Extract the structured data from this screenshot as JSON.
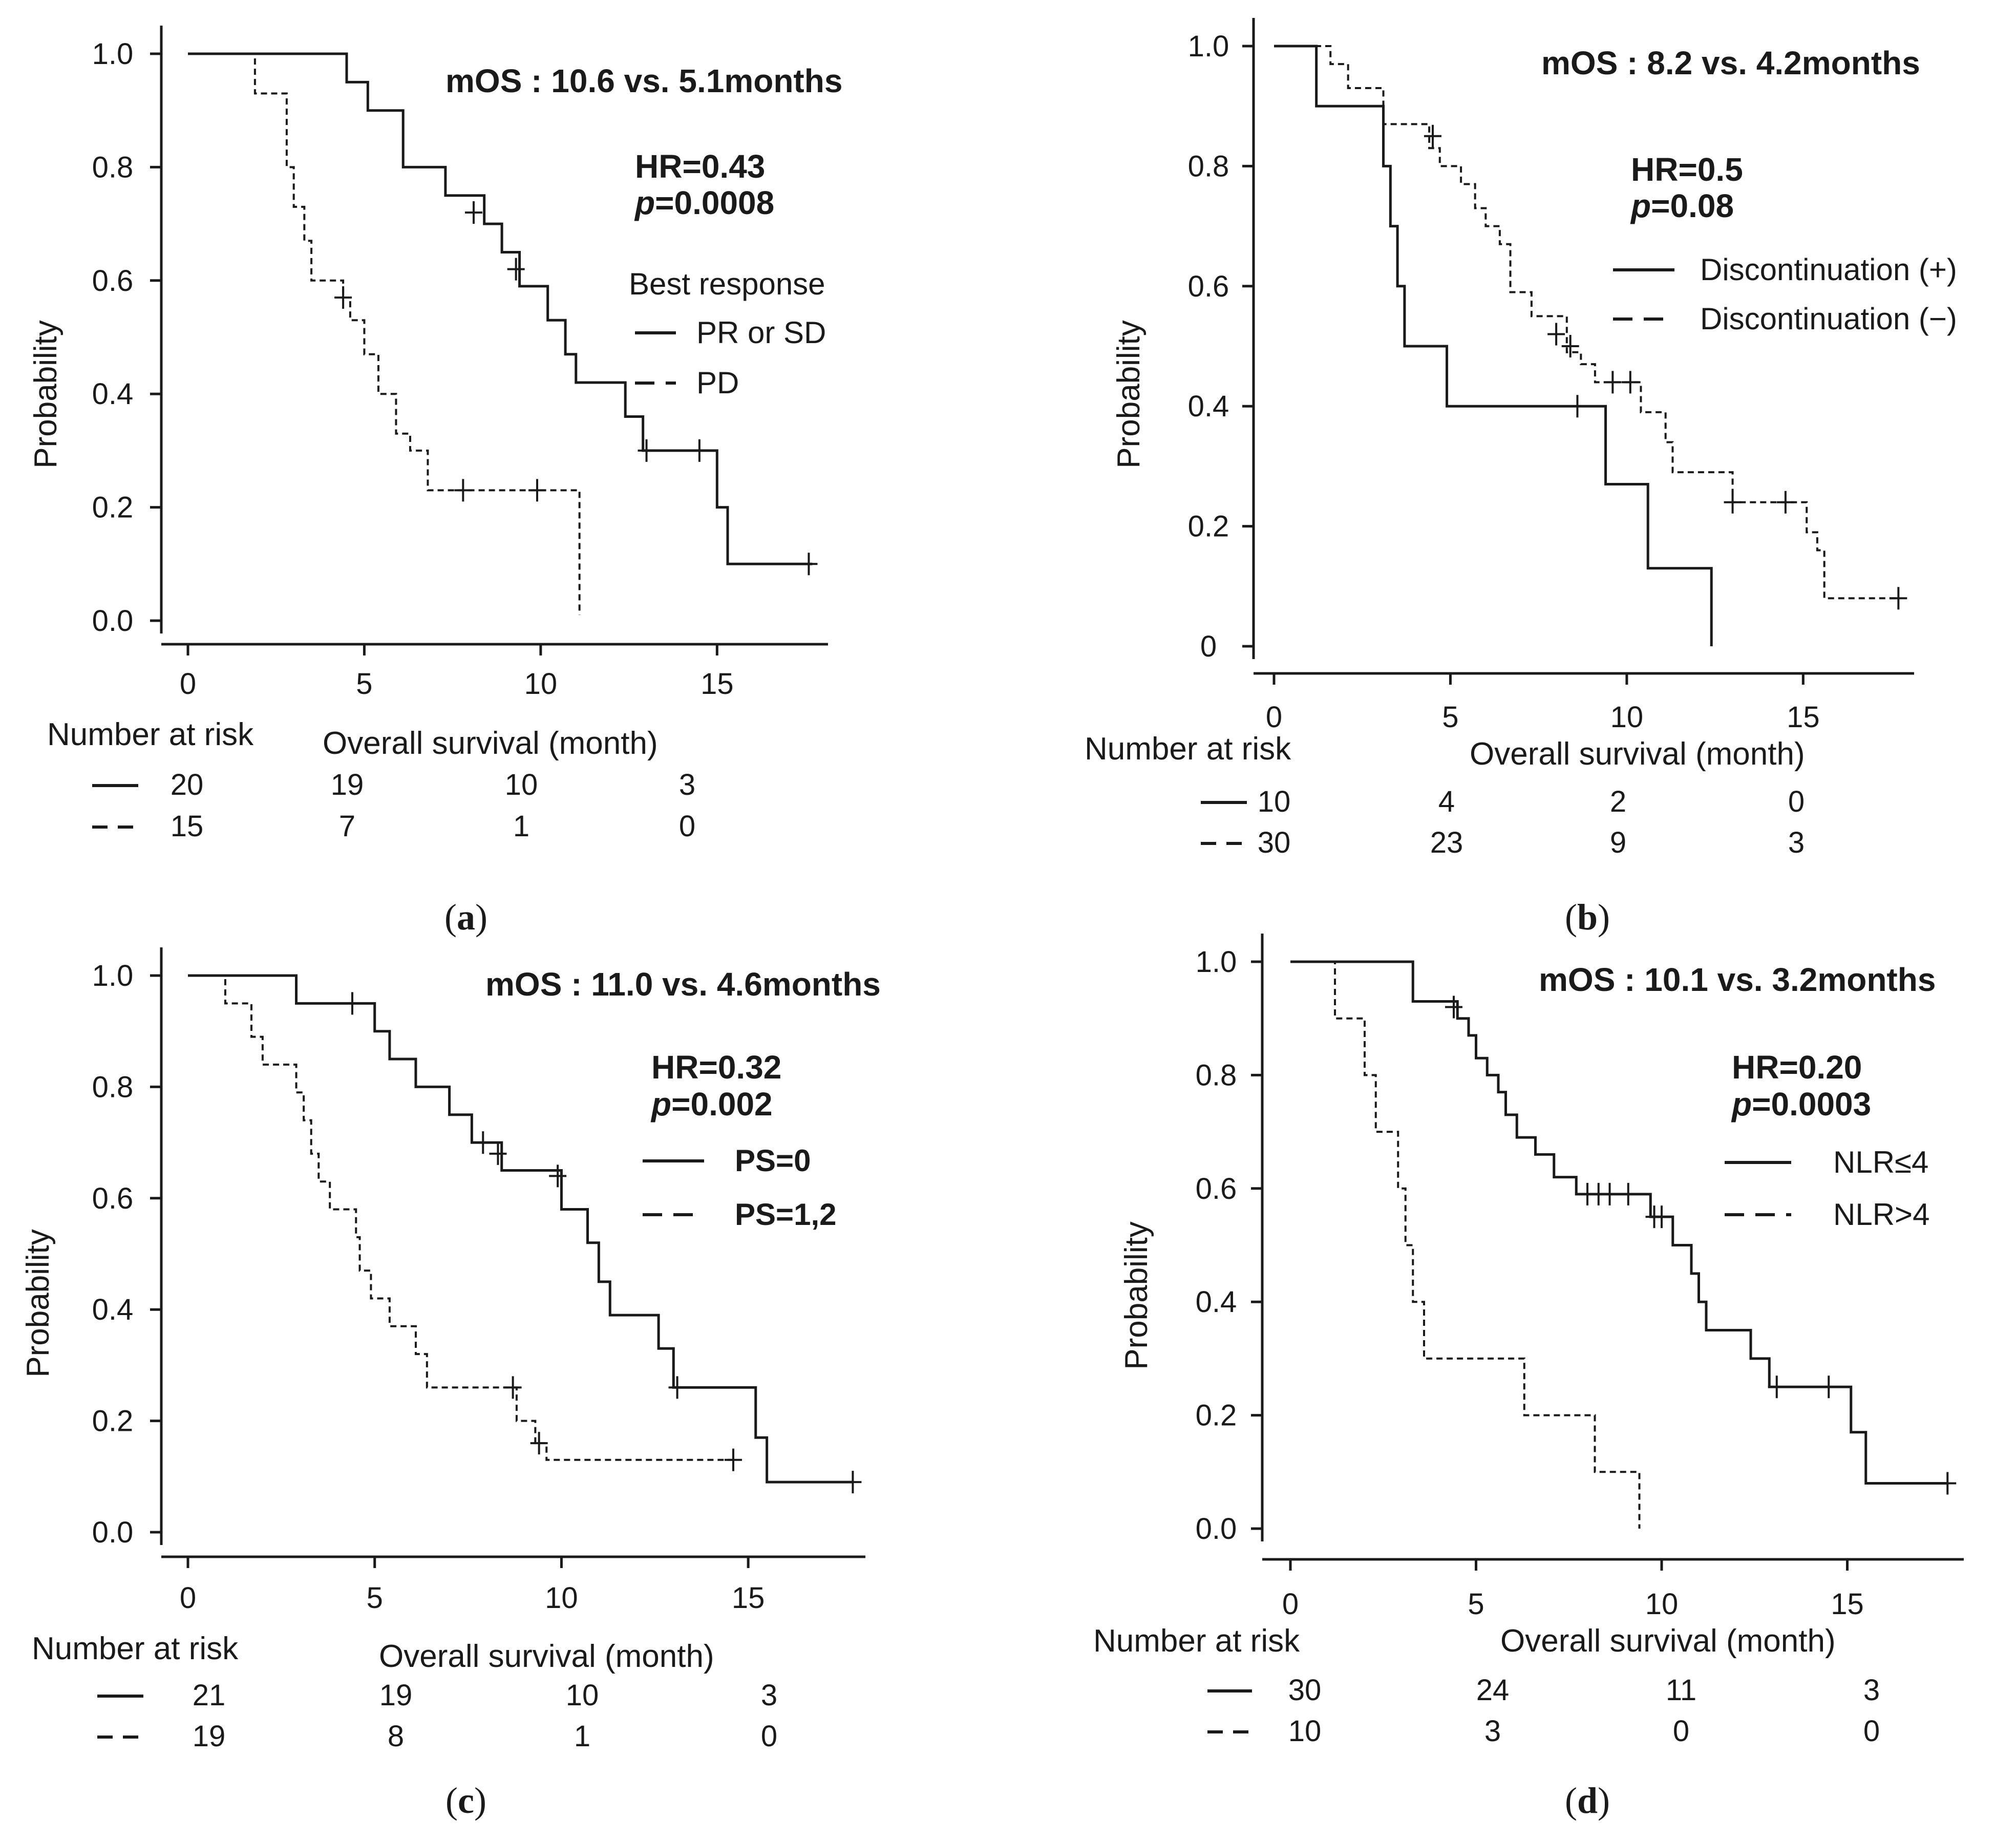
{
  "figure": {
    "xlabel": "Overall survival (month)",
    "ylabel": "Probability",
    "risk_label": "Number at risk"
  },
  "chart_data": [
    {
      "type": "line",
      "panel": "a",
      "caption": {
        "open": "(",
        "letter": "a",
        "close": ")"
      },
      "xlim": [
        0,
        18
      ],
      "ylim": [
        0,
        1
      ],
      "xticks": [
        "0",
        "5",
        "10",
        "15"
      ],
      "xtick_values": [
        0,
        5,
        10,
        15
      ],
      "yticks": [
        "0.0",
        "0.2",
        "0.4",
        "0.6",
        "0.8",
        "1.0"
      ],
      "ytick_values": [
        0,
        0.2,
        0.4,
        0.6,
        0.8,
        1.0
      ],
      "annotation": {
        "title": "mOS : 10.6 vs. 5.1months",
        "hr": "HR=0.43",
        "p_label": "p",
        "p_value": "=0.0008"
      },
      "legend": {
        "title": "Best response",
        "entries": [
          "PR or SD",
          "PD"
        ]
      },
      "series": [
        {
          "name": "PR or SD",
          "style": "solid",
          "steps": [
            [
              0,
              1.0
            ],
            [
              4.5,
              0.95
            ],
            [
              5.1,
              0.9
            ],
            [
              6.1,
              0.8
            ],
            [
              7.3,
              0.75
            ],
            [
              8.4,
              0.7
            ],
            [
              8.9,
              0.65
            ],
            [
              9.4,
              0.59
            ],
            [
              10.2,
              0.53
            ],
            [
              10.7,
              0.47
            ],
            [
              11.0,
              0.42
            ],
            [
              12.4,
              0.36
            ],
            [
              12.9,
              0.3
            ],
            [
              15.0,
              0.2
            ],
            [
              15.3,
              0.1
            ],
            [
              17.7,
              0.1
            ]
          ],
          "censors": [
            [
              8.1,
              0.72
            ],
            [
              9.3,
              0.62
            ],
            [
              13.0,
              0.3
            ],
            [
              14.5,
              0.3
            ],
            [
              17.6,
              0.1
            ]
          ]
        },
        {
          "name": "PD",
          "style": "dashed",
          "steps": [
            [
              0,
              1.0
            ],
            [
              1.9,
              0.93
            ],
            [
              2.8,
              0.8
            ],
            [
              3.0,
              0.73
            ],
            [
              3.3,
              0.67
            ],
            [
              3.5,
              0.6
            ],
            [
              4.4,
              0.57
            ],
            [
              4.6,
              0.53
            ],
            [
              5.0,
              0.47
            ],
            [
              5.4,
              0.4
            ],
            [
              5.9,
              0.33
            ],
            [
              6.3,
              0.3
            ],
            [
              6.8,
              0.23
            ],
            [
              11.1,
              0.23
            ],
            [
              11.1,
              0.01
            ]
          ],
          "censors": [
            [
              4.4,
              0.57
            ],
            [
              7.8,
              0.23
            ],
            [
              9.9,
              0.23
            ]
          ]
        }
      ],
      "risk_table": {
        "times": [
          0,
          5,
          10,
          15
        ],
        "rows": [
          [
            "20",
            "19",
            "10",
            "3"
          ],
          [
            "15",
            "7",
            "1",
            "0"
          ]
        ]
      }
    },
    {
      "type": "line",
      "panel": "b",
      "caption": {
        "open": "(",
        "letter": "b",
        "close": ")"
      },
      "xlim": [
        0,
        18
      ],
      "ylim": [
        0,
        1
      ],
      "xticks": [
        "0",
        "5",
        "10",
        "15"
      ],
      "xtick_values": [
        0,
        5,
        10,
        15
      ],
      "yticks": [
        "0",
        "0.2",
        "0.4",
        "0.6",
        "0.8",
        "1.0"
      ],
      "ytick_values": [
        0,
        0.2,
        0.4,
        0.6,
        0.8,
        1.0
      ],
      "annotation": {
        "title": "mOS : 8.2 vs. 4.2months",
        "hr": "HR=0.5",
        "p_label": "p",
        "p_value": "=0.08"
      },
      "legend": {
        "title": "",
        "entries": [
          "Discontinuation (+)",
          "Discontinuation (−)"
        ]
      },
      "series": [
        {
          "name": "Discontinuation (+)",
          "style": "solid",
          "steps": [
            [
              0,
              1.0
            ],
            [
              1.2,
              0.9
            ],
            [
              3.1,
              0.8
            ],
            [
              3.3,
              0.7
            ],
            [
              3.5,
              0.6
            ],
            [
              3.7,
              0.5
            ],
            [
              4.9,
              0.4
            ],
            [
              9.4,
              0.27
            ],
            [
              10.6,
              0.13
            ],
            [
              12.4,
              0.0
            ]
          ],
          "censors": [
            [
              8.6,
              0.4
            ]
          ]
        },
        {
          "name": "Discontinuation (−)",
          "style": "dashed",
          "steps": [
            [
              0,
              1.0
            ],
            [
              1.6,
              0.97
            ],
            [
              2.1,
              0.93
            ],
            [
              3.1,
              0.87
            ],
            [
              4.4,
              0.83
            ],
            [
              4.7,
              0.8
            ],
            [
              5.3,
              0.77
            ],
            [
              5.7,
              0.73
            ],
            [
              6.0,
              0.7
            ],
            [
              6.4,
              0.67
            ],
            [
              6.7,
              0.59
            ],
            [
              7.3,
              0.55
            ],
            [
              8.3,
              0.49
            ],
            [
              8.7,
              0.47
            ],
            [
              9.1,
              0.44
            ],
            [
              10.4,
              0.39
            ],
            [
              11.1,
              0.34
            ],
            [
              11.3,
              0.29
            ],
            [
              13.0,
              0.24
            ],
            [
              15.1,
              0.19
            ],
            [
              15.4,
              0.16
            ],
            [
              15.6,
              0.08
            ],
            [
              17.7,
              0.08
            ]
          ],
          "censors": [
            [
              4.5,
              0.85
            ],
            [
              8.0,
              0.52
            ],
            [
              8.4,
              0.5
            ],
            [
              9.6,
              0.44
            ],
            [
              10.1,
              0.44
            ],
            [
              13.0,
              0.24
            ],
            [
              14.5,
              0.24
            ],
            [
              17.7,
              0.08
            ]
          ]
        }
      ],
      "risk_table": {
        "times": [
          0,
          5,
          10,
          15
        ],
        "rows": [
          [
            "10",
            "4",
            "2",
            "0"
          ],
          [
            "30",
            "23",
            "9",
            "3"
          ]
        ]
      }
    },
    {
      "type": "line",
      "panel": "c",
      "caption": {
        "open": "(",
        "letter": "c",
        "close": ")"
      },
      "xlim": [
        0,
        18
      ],
      "ylim": [
        0,
        1
      ],
      "xticks": [
        "0",
        "5",
        "10",
        "15"
      ],
      "xtick_values": [
        0,
        5,
        10,
        15
      ],
      "yticks": [
        "0.0",
        "0.2",
        "0.4",
        "0.6",
        "0.8",
        "1.0"
      ],
      "ytick_values": [
        0,
        0.2,
        0.4,
        0.6,
        0.8,
        1.0
      ],
      "annotation": {
        "title": "mOS : 11.0 vs. 4.6months",
        "hr": "HR=0.32",
        "p_label": "p",
        "p_value": "=0.002"
      },
      "legend": {
        "title": "",
        "entries": [
          "PS=0",
          "PS=1,2"
        ]
      },
      "series": [
        {
          "name": "PS=0",
          "style": "solid",
          "steps": [
            [
              0,
              1.0
            ],
            [
              2.9,
              0.95
            ],
            [
              5.0,
              0.9
            ],
            [
              5.4,
              0.85
            ],
            [
              6.1,
              0.8
            ],
            [
              7.0,
              0.75
            ],
            [
              7.6,
              0.7
            ],
            [
              8.4,
              0.65
            ],
            [
              10.0,
              0.58
            ],
            [
              10.7,
              0.52
            ],
            [
              11.0,
              0.45
            ],
            [
              11.3,
              0.39
            ],
            [
              12.6,
              0.33
            ],
            [
              13.0,
              0.26
            ],
            [
              15.2,
              0.17
            ],
            [
              15.5,
              0.09
            ],
            [
              17.8,
              0.09
            ]
          ],
          "censors": [
            [
              4.4,
              0.95
            ],
            [
              7.9,
              0.7
            ],
            [
              8.3,
              0.68
            ],
            [
              9.9,
              0.64
            ],
            [
              13.1,
              0.26
            ],
            [
              17.8,
              0.09
            ]
          ]
        },
        {
          "name": "PS=1,2",
          "style": "dashed",
          "steps": [
            [
              0,
              1.0
            ],
            [
              1.0,
              0.95
            ],
            [
              1.7,
              0.89
            ],
            [
              2.0,
              0.84
            ],
            [
              2.9,
              0.79
            ],
            [
              3.1,
              0.74
            ],
            [
              3.3,
              0.68
            ],
            [
              3.5,
              0.63
            ],
            [
              3.8,
              0.58
            ],
            [
              4.5,
              0.53
            ],
            [
              4.6,
              0.47
            ],
            [
              4.9,
              0.42
            ],
            [
              5.4,
              0.37
            ],
            [
              6.1,
              0.32
            ],
            [
              6.4,
              0.26
            ],
            [
              8.8,
              0.2
            ],
            [
              9.3,
              0.16
            ],
            [
              9.6,
              0.13
            ],
            [
              14.7,
              0.13
            ]
          ],
          "censors": [
            [
              8.7,
              0.26
            ],
            [
              9.4,
              0.16
            ],
            [
              14.6,
              0.13
            ]
          ]
        }
      ],
      "risk_table": {
        "times": [
          0,
          5,
          10,
          15
        ],
        "rows": [
          [
            "21",
            "19",
            "10",
            "3"
          ],
          [
            "19",
            "8",
            "1",
            "0"
          ]
        ]
      }
    },
    {
      "type": "line",
      "panel": "d",
      "caption": {
        "open": "(",
        "letter": "d",
        "close": ")"
      },
      "xlim": [
        0,
        18
      ],
      "ylim": [
        0,
        1
      ],
      "xticks": [
        "0",
        "5",
        "10",
        "15"
      ],
      "xtick_values": [
        0,
        5,
        10,
        15
      ],
      "yticks": [
        "0.0",
        "0.2",
        "0.4",
        "0.6",
        "0.8",
        "1.0"
      ],
      "ytick_values": [
        0,
        0.2,
        0.4,
        0.6,
        0.8,
        1.0
      ],
      "annotation": {
        "title": "mOS : 10.1 vs. 3.2months",
        "hr": "HR=0.20",
        "p_label": "p",
        "p_value": "=0.0003"
      },
      "legend": {
        "title": "",
        "entries": [
          "NLR≤4",
          "NLR>4"
        ]
      },
      "series": [
        {
          "name": "NLR≤4",
          "style": "solid",
          "steps": [
            [
              0,
              1.0
            ],
            [
              3.3,
              0.93
            ],
            [
              4.5,
              0.9
            ],
            [
              4.8,
              0.87
            ],
            [
              5.0,
              0.83
            ],
            [
              5.3,
              0.8
            ],
            [
              5.6,
              0.77
            ],
            [
              5.8,
              0.73
            ],
            [
              6.1,
              0.69
            ],
            [
              6.6,
              0.66
            ],
            [
              7.1,
              0.62
            ],
            [
              7.7,
              0.59
            ],
            [
              9.7,
              0.55
            ],
            [
              10.3,
              0.5
            ],
            [
              10.8,
              0.45
            ],
            [
              11.0,
              0.4
            ],
            [
              11.2,
              0.35
            ],
            [
              12.4,
              0.3
            ],
            [
              12.9,
              0.25
            ],
            [
              15.1,
              0.17
            ],
            [
              15.5,
              0.08
            ],
            [
              17.7,
              0.08
            ]
          ],
          "censors": [
            [
              4.4,
              0.92
            ],
            [
              8.0,
              0.59
            ],
            [
              8.3,
              0.59
            ],
            [
              8.6,
              0.59
            ],
            [
              9.1,
              0.59
            ],
            [
              9.8,
              0.55
            ],
            [
              10.0,
              0.55
            ],
            [
              13.1,
              0.25
            ],
            [
              14.5,
              0.25
            ],
            [
              17.7,
              0.08
            ]
          ]
        },
        {
          "name": "NLR>4",
          "style": "dashed",
          "steps": [
            [
              0,
              1.0
            ],
            [
              1.2,
              0.9
            ],
            [
              2.0,
              0.8
            ],
            [
              2.3,
              0.7
            ],
            [
              2.9,
              0.6
            ],
            [
              3.1,
              0.5
            ],
            [
              3.3,
              0.4
            ],
            [
              3.6,
              0.3
            ],
            [
              6.3,
              0.2
            ],
            [
              8.2,
              0.1
            ],
            [
              9.4,
              0.0
            ]
          ],
          "censors": []
        }
      ],
      "risk_table": {
        "times": [
          0,
          5,
          10,
          15
        ],
        "rows": [
          [
            "30",
            "24",
            "11",
            "3"
          ],
          [
            "10",
            "3",
            "0",
            "0"
          ]
        ]
      }
    }
  ]
}
